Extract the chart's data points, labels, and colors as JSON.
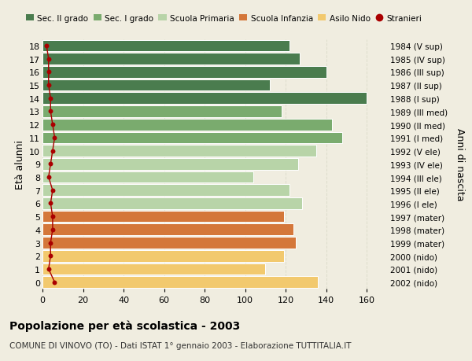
{
  "ages": [
    18,
    17,
    16,
    15,
    14,
    13,
    12,
    11,
    10,
    9,
    8,
    7,
    6,
    5,
    4,
    3,
    2,
    1,
    0
  ],
  "years": [
    "1984 (V sup)",
    "1985 (IV sup)",
    "1986 (III sup)",
    "1987 (II sup)",
    "1988 (I sup)",
    "1989 (III med)",
    "1990 (II med)",
    "1991 (I med)",
    "1992 (V ele)",
    "1993 (IV ele)",
    "1994 (III ele)",
    "1995 (II ele)",
    "1996 (I ele)",
    "1997 (mater)",
    "1998 (mater)",
    "1999 (mater)",
    "2000 (nido)",
    "2001 (nido)",
    "2002 (nido)"
  ],
  "bar_values": [
    122,
    127,
    140,
    112,
    160,
    118,
    143,
    148,
    135,
    126,
    104,
    122,
    128,
    119,
    124,
    125,
    119,
    110,
    136
  ],
  "stranieri": [
    2,
    3,
    3,
    3,
    4,
    4,
    5,
    6,
    5,
    4,
    3,
    5,
    4,
    5,
    5,
    4,
    4,
    3,
    6
  ],
  "bar_colors": [
    "#4a7c4e",
    "#4a7c4e",
    "#4a7c4e",
    "#4a7c4e",
    "#4a7c4e",
    "#7aab6e",
    "#7aab6e",
    "#7aab6e",
    "#b8d4a8",
    "#b8d4a8",
    "#b8d4a8",
    "#b8d4a8",
    "#b8d4a8",
    "#d4773a",
    "#d4773a",
    "#d4773a",
    "#f2c96e",
    "#f2c96e",
    "#f2c96e"
  ],
  "legend_labels": [
    "Sec. II grado",
    "Sec. I grado",
    "Scuola Primaria",
    "Scuola Infanzia",
    "Asilo Nido",
    "Stranieri"
  ],
  "legend_colors": [
    "#4a7c4e",
    "#7aab6e",
    "#b8d4a8",
    "#d4773a",
    "#f2c96e",
    "#aa0000"
  ],
  "title": "Popolazione per età scolastica - 2003",
  "subtitle": "COMUNE DI VINOVO (TO) - Dati ISTAT 1° gennaio 2003 - Elaborazione TUTTITALIA.IT",
  "ylabel": "Età alunni",
  "ylabel2": "Anni di nascita",
  "xlim": [
    0,
    170
  ],
  "ylim": [
    -0.5,
    18.5
  ],
  "background_color": "#f0ede0",
  "stranieri_color": "#aa0000",
  "grid_color": "#ddddcc",
  "xticks": [
    0,
    20,
    40,
    60,
    80,
    100,
    120,
    140,
    160
  ]
}
